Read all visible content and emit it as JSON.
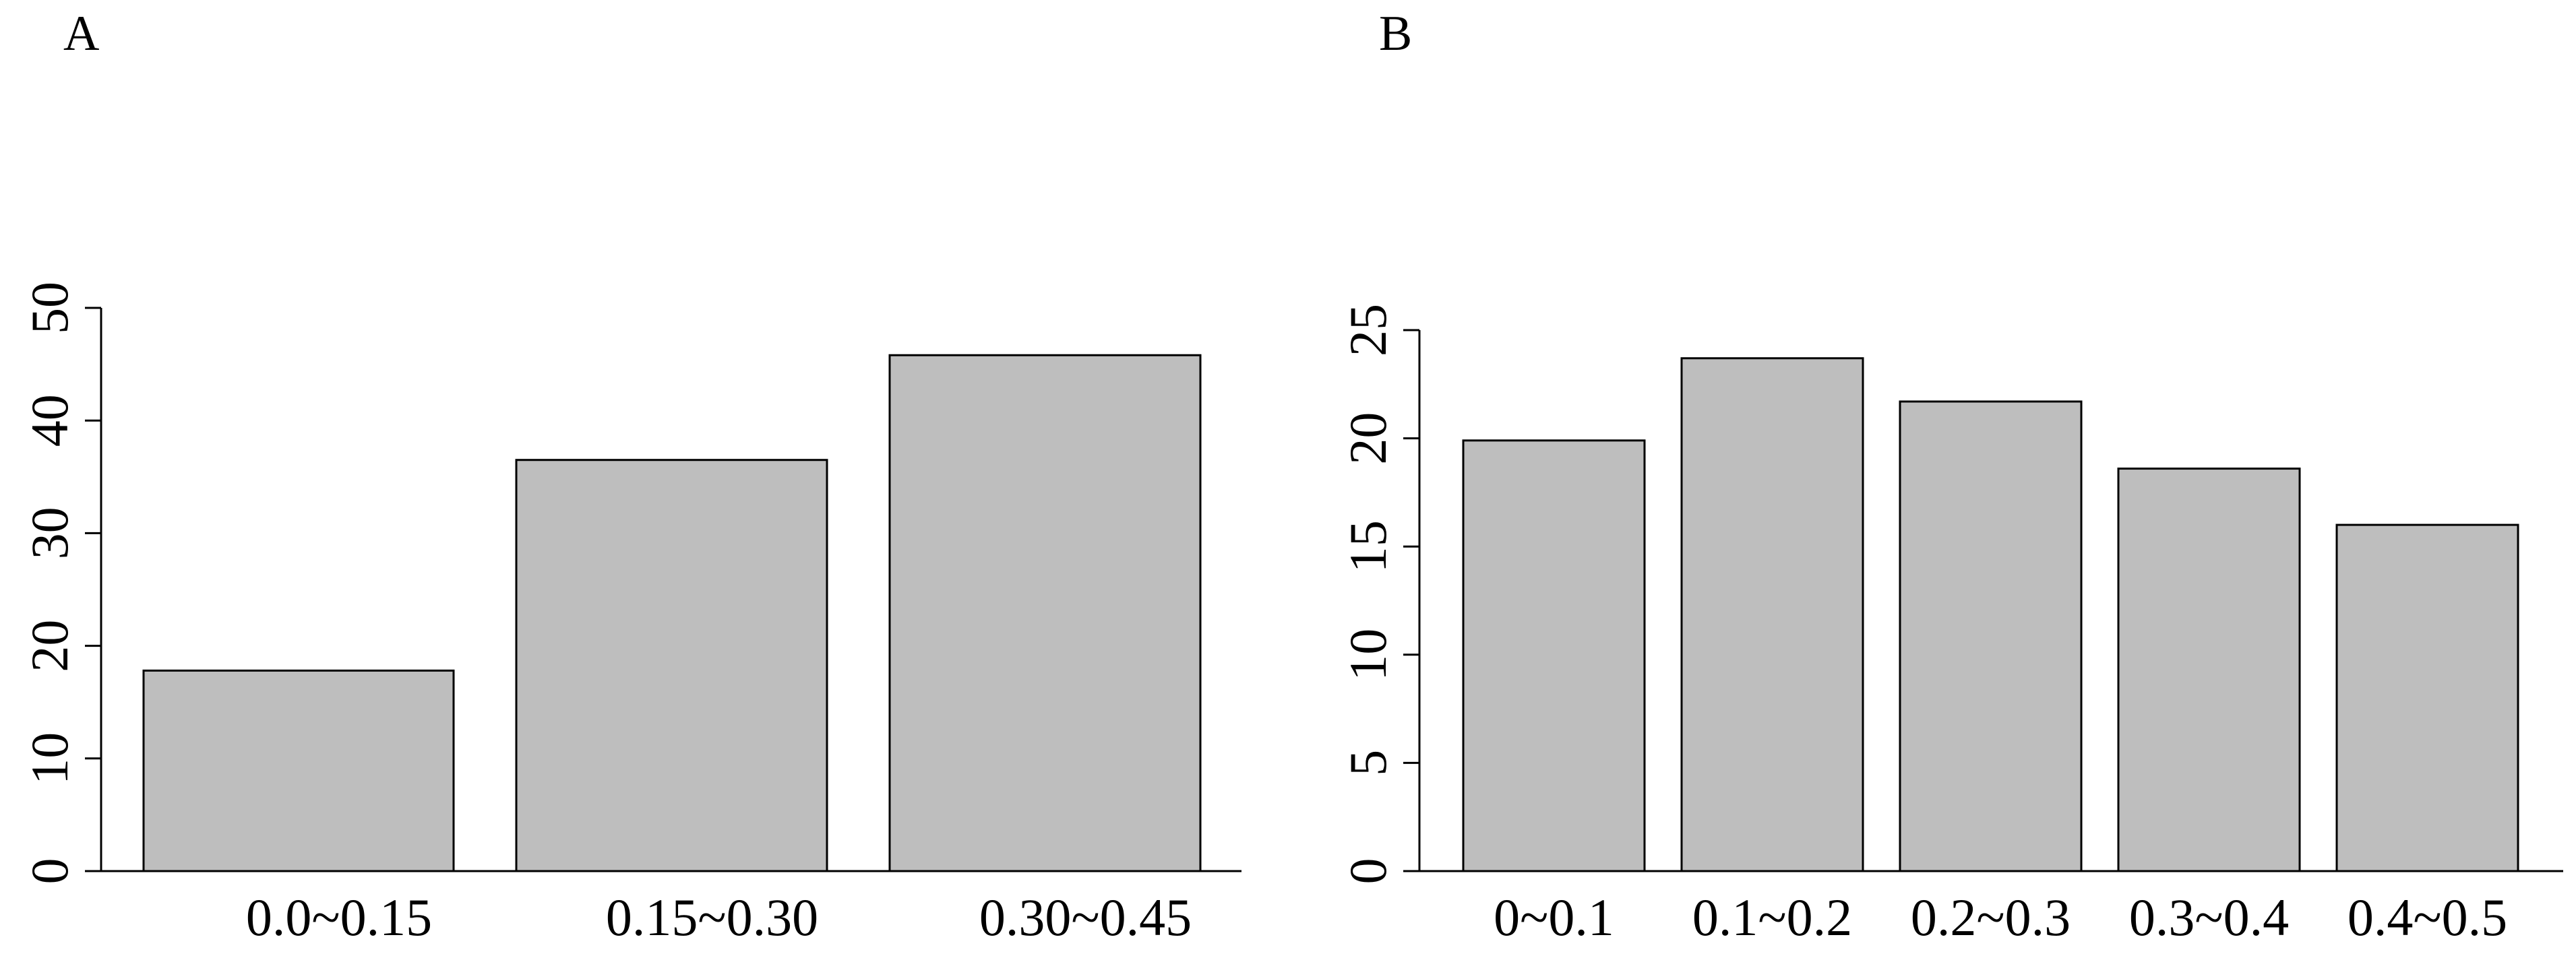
{
  "chart_data": [
    {
      "type": "bar",
      "panel_label": "A",
      "categories": [
        "0.0~0.15",
        "0.15~0.30",
        "0.30~0.45"
      ],
      "values": [
        17.8,
        36.5,
        45.8
      ],
      "yticks": [
        "0",
        "10",
        "20",
        "30",
        "40",
        "50"
      ],
      "ylim": [
        0,
        50
      ],
      "title": "",
      "xlabel": "",
      "ylabel": "",
      "bar_color": "#bebebe",
      "grid": false,
      "legend": "none"
    },
    {
      "type": "bar",
      "panel_label": "B",
      "categories": [
        "0~0.1",
        "0.1~0.2",
        "0.2~0.3",
        "0.3~0.4",
        "0.4~0.5"
      ],
      "values": [
        19.9,
        23.7,
        21.7,
        18.6,
        16.0
      ],
      "yticks": [
        "0",
        "5",
        "10",
        "15",
        "20",
        "25"
      ],
      "ylim": [
        0,
        25
      ],
      "title": "",
      "xlabel": "",
      "ylabel": "",
      "bar_color": "#bebebe",
      "grid": false,
      "legend": "none"
    }
  ]
}
